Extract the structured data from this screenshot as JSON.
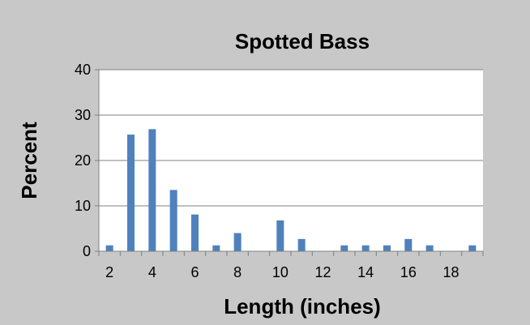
{
  "chart_data": {
    "type": "bar",
    "title": "Spotted Bass",
    "xlabel": "Length (inches)",
    "ylabel": "Percent",
    "x": [
      2,
      3,
      4,
      5,
      6,
      7,
      8,
      9,
      10,
      11,
      12,
      13,
      14,
      15,
      16,
      17,
      18,
      19
    ],
    "values": [
      1.3,
      25.7,
      26.9,
      13.5,
      8.1,
      1.3,
      4.0,
      0,
      6.8,
      2.7,
      0,
      1.3,
      1.3,
      1.3,
      2.7,
      1.3,
      0,
      1.3
    ],
    "xticks": [
      "2",
      "4",
      "6",
      "8",
      "10",
      "12",
      "14",
      "16",
      "18"
    ],
    "yticks": [
      "0",
      "10",
      "20",
      "30",
      "40"
    ],
    "ylim": [
      0,
      40
    ],
    "xlim": [
      1.5,
      19.5
    ],
    "grid": "horizontal",
    "legend": "none",
    "colors": {
      "bar": "#4F81BD",
      "frame": "#C8C8C8",
      "plot_bg": "#FFFFFF",
      "grid": "#808080",
      "axis": "#808080"
    }
  }
}
